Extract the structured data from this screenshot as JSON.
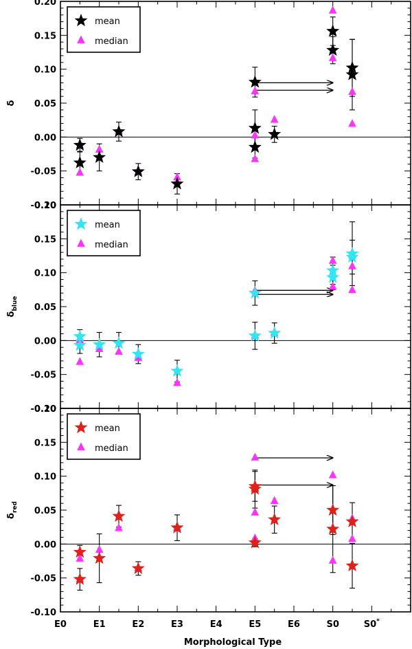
{
  "chart_data": {
    "type": "scatter",
    "xlabel": "Morphological Type",
    "x_tick_labels": [
      "E0",
      "E1",
      "E2",
      "E3",
      "E4",
      "E5",
      "E6",
      "S0",
      "S0*"
    ],
    "panels": [
      {
        "ylabel": "δ",
        "ylim": [
          -0.1,
          0.2
        ],
        "y_ticks": [
          "-0.10",
          "-0.05",
          "0.00",
          "0.05",
          "0.10",
          "0.15",
          "0.20"
        ],
        "mean_color": "#000000",
        "legend": {
          "mean": "mean",
          "median": "median"
        },
        "mean_points": [
          {
            "x": 0.5,
            "y": -0.038,
            "err": 0.017
          },
          {
            "x": 0.5,
            "y": -0.012,
            "err": 0.01
          },
          {
            "x": 1.0,
            "y": -0.03,
            "err": 0.02
          },
          {
            "x": 1.5,
            "y": 0.008,
            "err": 0.014
          },
          {
            "x": 2.0,
            "y": -0.051,
            "err": 0.012
          },
          {
            "x": 3.0,
            "y": -0.069,
            "err": 0.015
          },
          {
            "x": 5.0,
            "y": 0.081,
            "err": 0.022
          },
          {
            "x": 5.0,
            "y": 0.013,
            "err": 0.027
          },
          {
            "x": 5.0,
            "y": -0.015,
            "err": 0.016
          },
          {
            "x": 5.5,
            "y": 0.004,
            "err": 0.012
          },
          {
            "x": 7.0,
            "y": 0.156,
            "err": 0.021
          },
          {
            "x": 7.0,
            "y": 0.128,
            "err": 0.02
          },
          {
            "x": 7.5,
            "y": 0.102,
            "err": 0.042
          },
          {
            "x": 7.5,
            "y": 0.092,
            "err": 0.052
          }
        ],
        "median_points": [
          {
            "x": 0.5,
            "y": -0.052
          },
          {
            "x": 0.5,
            "y": -0.012
          },
          {
            "x": 1.0,
            "y": -0.018
          },
          {
            "x": 1.5,
            "y": 0.01
          },
          {
            "x": 2.0,
            "y": -0.051
          },
          {
            "x": 3.0,
            "y": -0.059
          },
          {
            "x": 5.0,
            "y": 0.068
          },
          {
            "x": 5.0,
            "y": 0.003
          },
          {
            "x": 5.0,
            "y": -0.032
          },
          {
            "x": 5.5,
            "y": 0.026
          },
          {
            "x": 7.0,
            "y": 0.187
          },
          {
            "x": 7.0,
            "y": 0.117
          },
          {
            "x": 7.5,
            "y": 0.067
          },
          {
            "x": 7.5,
            "y": 0.02
          }
        ],
        "arrows": [
          {
            "x_from": 5.0,
            "x_to": 7.0,
            "y": 0.08
          },
          {
            "x_from": 5.0,
            "x_to": 7.0,
            "y": 0.069
          }
        ]
      },
      {
        "ylabel": "δ",
        "ylabel_sub": "blue",
        "ylim": [
          -0.1,
          0.2
        ],
        "y_ticks": [
          "-0.10",
          "-0.05",
          "0.00",
          "0.05",
          "0.10",
          "0.15",
          "0.20"
        ],
        "mean_color": "#33e5f0",
        "legend": {
          "mean": "mean",
          "median": "median"
        },
        "mean_points": [
          {
            "x": 0.5,
            "y": 0.006,
            "err": 0.01
          },
          {
            "x": 0.5,
            "y": -0.007,
            "err": 0.012
          },
          {
            "x": 1.0,
            "y": -0.006,
            "err": 0.018
          },
          {
            "x": 1.5,
            "y": -0.004,
            "err": 0.016
          },
          {
            "x": 2.0,
            "y": -0.02,
            "err": 0.014
          },
          {
            "x": 3.0,
            "y": -0.045,
            "err": 0.016
          },
          {
            "x": 5.0,
            "y": 0.07,
            "err": 0.018
          },
          {
            "x": 5.0,
            "y": 0.007,
            "err": 0.02
          },
          {
            "x": 5.5,
            "y": 0.011,
            "err": 0.015
          },
          {
            "x": 7.0,
            "y": 0.103,
            "err": 0.02
          },
          {
            "x": 7.0,
            "y": 0.093,
            "err": 0.018
          },
          {
            "x": 7.5,
            "y": 0.128,
            "err": 0.047
          },
          {
            "x": 7.5,
            "y": 0.123,
            "err": 0.025
          }
        ],
        "median_points": [
          {
            "x": 0.5,
            "y": 0.001
          },
          {
            "x": 0.5,
            "y": -0.031
          },
          {
            "x": 1.0,
            "y": -0.012
          },
          {
            "x": 1.5,
            "y": -0.016
          },
          {
            "x": 2.0,
            "y": -0.025
          },
          {
            "x": 3.0,
            "y": -0.062
          },
          {
            "x": 5.0,
            "y": 0.074
          },
          {
            "x": 5.0,
            "y": 0.008
          },
          {
            "x": 5.5,
            "y": 0.012
          },
          {
            "x": 7.0,
            "y": 0.118
          },
          {
            "x": 7.0,
            "y": 0.08
          },
          {
            "x": 7.5,
            "y": 0.11
          },
          {
            "x": 7.5,
            "y": 0.075
          }
        ],
        "arrows": [
          {
            "x_from": 5.0,
            "x_to": 7.0,
            "y": 0.074
          },
          {
            "x_from": 5.0,
            "x_to": 7.0,
            "y": 0.068
          }
        ]
      },
      {
        "ylabel": "δ",
        "ylabel_sub": "red",
        "ylim": [
          -0.1,
          0.2
        ],
        "y_ticks": [
          "-0.10",
          "-0.05",
          "0.00",
          "0.05",
          "0.10",
          "0.15",
          "0.20"
        ],
        "mean_color": "#e0201a",
        "legend": {
          "mean": "mean",
          "median": "median"
        },
        "mean_points": [
          {
            "x": 0.5,
            "y": -0.012,
            "err": 0.01
          },
          {
            "x": 0.5,
            "y": -0.052,
            "err": 0.016
          },
          {
            "x": 1.0,
            "y": -0.021,
            "err": 0.036
          },
          {
            "x": 1.5,
            "y": 0.041,
            "err": 0.016
          },
          {
            "x": 2.0,
            "y": -0.036,
            "err": 0.01
          },
          {
            "x": 3.0,
            "y": 0.024,
            "err": 0.019
          },
          {
            "x": 5.0,
            "y": 0.085,
            "err": 0.022
          },
          {
            "x": 5.0,
            "y": 0.081,
            "err": 0.028
          },
          {
            "x": 5.0,
            "y": 0.002,
            "err": 0.006
          },
          {
            "x": 5.5,
            "y": 0.036,
            "err": 0.02
          },
          {
            "x": 7.0,
            "y": 0.05,
            "err": 0.036
          },
          {
            "x": 7.0,
            "y": 0.022,
            "err": 0.064
          },
          {
            "x": 7.5,
            "y": 0.033,
            "err": 0.028
          },
          {
            "x": 7.5,
            "y": -0.032,
            "err": 0.033
          }
        ],
        "median_points": [
          {
            "x": 0.5,
            "y": -0.021
          },
          {
            "x": 0.5,
            "y": -0.051
          },
          {
            "x": 1.0,
            "y": -0.008
          },
          {
            "x": 1.5,
            "y": 0.024
          },
          {
            "x": 2.0,
            "y": -0.035
          },
          {
            "x": 3.0,
            "y": 0.025
          },
          {
            "x": 5.0,
            "y": 0.128
          },
          {
            "x": 5.0,
            "y": 0.047
          },
          {
            "x": 5.0,
            "y": 0.009
          },
          {
            "x": 5.5,
            "y": 0.064
          },
          {
            "x": 7.0,
            "y": 0.102
          },
          {
            "x": 7.0,
            "y": -0.024
          },
          {
            "x": 7.5,
            "y": 0.038
          },
          {
            "x": 7.5,
            "y": 0.008
          }
        ],
        "arrows": [
          {
            "x_from": 5.0,
            "x_to": 7.0,
            "y": 0.127
          },
          {
            "x_from": 5.0,
            "x_to": 7.0,
            "y": 0.087
          }
        ]
      }
    ],
    "colors": {
      "median": "#ff33ff",
      "axis": "#000000"
    }
  }
}
